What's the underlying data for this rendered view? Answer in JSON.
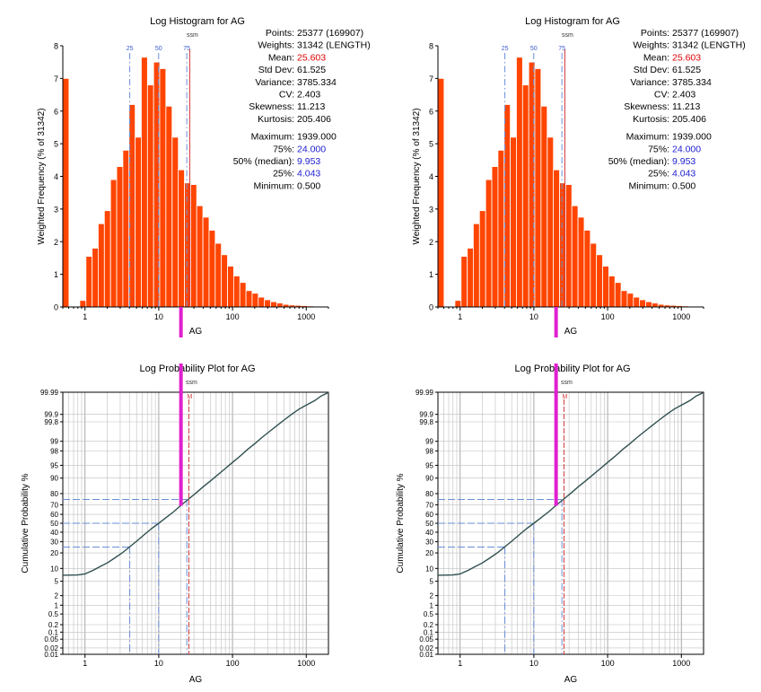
{
  "colors": {
    "bar_fill": "#FF4500",
    "bar_edge": "#FFFFFF",
    "axis": "#000000",
    "grid": "#BFBFBF",
    "curve": "#2F4F4F",
    "quantile_line": "#6A8FD8",
    "mean_line": "#D23C3C",
    "magenta": "#E020D0",
    "value_red": "#E00000",
    "value_blue": "#2020D0"
  },
  "stats": [
    {
      "label": "Points:",
      "value": "25377 (169907)",
      "color": "black",
      "gap": false
    },
    {
      "label": "Weights:",
      "value": "31342 (LENGTH)",
      "color": "black",
      "gap": false
    },
    {
      "label": "Mean:",
      "value": "25.603",
      "color": "red",
      "gap": false
    },
    {
      "label": "Std Dev:",
      "value": "61.525",
      "color": "black",
      "gap": false
    },
    {
      "label": "Variance:",
      "value": "3785.334",
      "color": "black",
      "gap": false
    },
    {
      "label": "CV:",
      "value": "2.403",
      "color": "black",
      "gap": false
    },
    {
      "label": "Skewness:",
      "value": "11.213",
      "color": "black",
      "gap": false
    },
    {
      "label": "Kurtosis:",
      "value": "205.406",
      "color": "black",
      "gap": false
    },
    {
      "label": "Maximum:",
      "value": "1939.000",
      "color": "black",
      "gap": true
    },
    {
      "label": "75%:",
      "value": "24.000",
      "color": "blue",
      "gap": false
    },
    {
      "label": "50% (median):",
      "value": "9.953",
      "color": "blue",
      "gap": false
    },
    {
      "label": "25%:",
      "value": "4.043",
      "color": "blue",
      "gap": false
    },
    {
      "label": "Minimum:",
      "value": "0.500",
      "color": "black",
      "gap": false
    }
  ],
  "chart_data": [
    {
      "id": "histogram-left",
      "type": "bar",
      "title": "Log Histogram for AG",
      "xlabel": "AG",
      "ylabel": "Weighted Frequency (% of 31342)",
      "x_scale": "log",
      "xlim": [
        0.5,
        2000
      ],
      "ylim": [
        0,
        8
      ],
      "x_ticks": [
        1,
        10,
        100,
        1000
      ],
      "y_ticks": [
        0,
        1,
        2,
        3,
        4,
        5,
        6,
        7,
        8
      ],
      "bin_log_width": 0.0833,
      "bin_left_edges": [
        0.5,
        0.7,
        0.85,
        1.03,
        1.25,
        1.51,
        1.83,
        2.22,
        2.69,
        3.26,
        3.95,
        4.79,
        5.8,
        7.03,
        8.52,
        10.3,
        12.5,
        15.2,
        18.4,
        22.3,
        27.0,
        32.7,
        39.7,
        48.1,
        58.3,
        70.6,
        85.6,
        103.7,
        125.7,
        152.3,
        184.6,
        223.7,
        271.1,
        328.5,
        398.1,
        482.4,
        584.6,
        708.5,
        858.5,
        1040.4,
        1260.7,
        1527.8
      ],
      "values": [
        7.0,
        0.0,
        0.2,
        1.55,
        1.8,
        2.55,
        2.95,
        3.9,
        4.3,
        4.8,
        6.2,
        5.2,
        7.65,
        6.8,
        7.5,
        7.3,
        6.15,
        5.2,
        4.2,
        3.8,
        3.75,
        3.1,
        2.75,
        2.35,
        1.95,
        1.6,
        1.25,
        0.95,
        0.75,
        0.5,
        0.42,
        0.3,
        0.22,
        0.16,
        0.12,
        0.08,
        0.06,
        0.05,
        0.04,
        0.03,
        0.02,
        0.01
      ],
      "vlines": [
        {
          "label": "25",
          "x": 4.043,
          "kind": "quantile"
        },
        {
          "label": "50",
          "x": 9.953,
          "kind": "quantile"
        },
        {
          "label": "75",
          "x": 24.0,
          "kind": "quantile"
        },
        {
          "label": "ssm",
          "x": 25.603,
          "kind": "mean"
        }
      ]
    },
    {
      "id": "histogram-right",
      "type": "bar",
      "title": "Log Histogram for AG",
      "xlabel": "AG",
      "ylabel": "Weighted Frequency (% of 31342)",
      "x_scale": "log",
      "xlim": [
        0.5,
        2000
      ],
      "ylim": [
        0,
        8
      ],
      "x_ticks": [
        1,
        10,
        100,
        1000
      ],
      "y_ticks": [
        0,
        1,
        2,
        3,
        4,
        5,
        6,
        7,
        8
      ],
      "bin_log_width": 0.0833,
      "bin_left_edges": [
        0.5,
        0.7,
        0.85,
        1.03,
        1.25,
        1.51,
        1.83,
        2.22,
        2.69,
        3.26,
        3.95,
        4.79,
        5.8,
        7.03,
        8.52,
        10.3,
        12.5,
        15.2,
        18.4,
        22.3,
        27.0,
        32.7,
        39.7,
        48.1,
        58.3,
        70.6,
        85.6,
        103.7,
        125.7,
        152.3,
        184.6,
        223.7,
        271.1,
        328.5,
        398.1,
        482.4,
        584.6,
        708.5,
        858.5,
        1040.4,
        1260.7,
        1527.8
      ],
      "values": [
        7.0,
        0.0,
        0.2,
        1.55,
        1.8,
        2.55,
        2.95,
        3.9,
        4.3,
        4.8,
        6.2,
        5.2,
        7.65,
        6.8,
        7.5,
        7.3,
        6.15,
        5.2,
        4.2,
        3.8,
        3.75,
        3.1,
        2.75,
        2.35,
        1.95,
        1.6,
        1.25,
        0.95,
        0.75,
        0.5,
        0.42,
        0.3,
        0.22,
        0.16,
        0.12,
        0.08,
        0.06,
        0.05,
        0.04,
        0.03,
        0.02,
        0.01
      ],
      "vlines": [
        {
          "label": "25",
          "x": 4.043,
          "kind": "quantile"
        },
        {
          "label": "50",
          "x": 9.953,
          "kind": "quantile"
        },
        {
          "label": "75",
          "x": 24.0,
          "kind": "quantile"
        },
        {
          "label": "ssm",
          "x": 25.603,
          "kind": "mean"
        }
      ]
    },
    {
      "id": "probability-left",
      "type": "line",
      "title": "Log Probability Plot for AG",
      "xlabel": "AG",
      "ylabel": "Cumulative Probability %",
      "x_scale": "log",
      "y_scale": "probability",
      "xlim": [
        0.5,
        2000
      ],
      "ylim": [
        0.01,
        99.99
      ],
      "x_ticks": [
        1,
        10,
        100,
        1000
      ],
      "y_ticks": [
        0.01,
        0.02,
        0.05,
        0.1,
        0.2,
        0.5,
        1,
        2,
        5,
        10,
        20,
        30,
        40,
        50,
        60,
        70,
        80,
        90,
        95,
        98,
        99,
        99.8,
        99.9,
        99.99
      ],
      "y_tick_labels": [
        "0.01",
        "0.02",
        "0.05",
        "0.1",
        "0.2",
        "0.5",
        "1",
        "2",
        "5",
        "10",
        "20",
        "30",
        "40",
        "50",
        "60",
        "70",
        "80",
        "90",
        "95",
        "98",
        "99",
        "99.8",
        "99.9",
        "99.99"
      ],
      "series": [
        {
          "name": "AG",
          "x": [
            0.5,
            0.8,
            1.0,
            1.3,
            1.6,
            2.0,
            2.5,
            3.2,
            4.0,
            5.0,
            6.3,
            8.0,
            10.0,
            12.6,
            16.0,
            20.0,
            25.0,
            32.0,
            40.0,
            50.0,
            63.0,
            80.0,
            100.0,
            130.0,
            160.0,
            200.0,
            250.0,
            320.0,
            400.0,
            500.0,
            630.0,
            800.0,
            1000.0,
            1300.0,
            1600.0,
            1939.0
          ],
          "y": [
            7.0,
            7.1,
            7.5,
            9.2,
            11.0,
            13.0,
            16.0,
            20.0,
            25.0,
            30.5,
            37.0,
            44.0,
            50.0,
            56.5,
            63.0,
            69.5,
            75.0,
            80.5,
            85.0,
            88.5,
            91.5,
            94.0,
            95.8,
            97.3,
            98.2,
            98.8,
            99.25,
            99.55,
            99.72,
            99.83,
            99.9,
            99.94,
            99.96,
            99.975,
            99.985,
            99.99
          ]
        }
      ],
      "guides": [
        {
          "label": "25",
          "x": 4.043,
          "p": 25,
          "kind": "quantile"
        },
        {
          "label": "50",
          "x": 9.953,
          "p": 50,
          "kind": "quantile"
        },
        {
          "label": "75",
          "x": 24.0,
          "p": 75,
          "kind": "quantile"
        },
        {
          "label": "M",
          "x": 25.603,
          "p": null,
          "kind": "mean"
        }
      ],
      "mean_tag": "ssm"
    },
    {
      "id": "probability-right",
      "type": "line",
      "title": "Log Probability Plot for AG",
      "xlabel": "AG",
      "ylabel": "Cumulative Probability %",
      "x_scale": "log",
      "y_scale": "probability",
      "xlim": [
        0.5,
        2000
      ],
      "ylim": [
        0.01,
        99.99
      ],
      "x_ticks": [
        1,
        10,
        100,
        1000
      ],
      "y_ticks": [
        0.01,
        0.02,
        0.05,
        0.1,
        0.2,
        0.5,
        1,
        2,
        5,
        10,
        20,
        30,
        40,
        50,
        60,
        70,
        80,
        90,
        95,
        98,
        99,
        99.8,
        99.9,
        99.99
      ],
      "y_tick_labels": [
        "0.01",
        "0.02",
        "0.05",
        "0.1",
        "0.2",
        "0.5",
        "1",
        "2",
        "5",
        "10",
        "20",
        "30",
        "40",
        "50",
        "60",
        "70",
        "80",
        "90",
        "95",
        "98",
        "99",
        "99.8",
        "99.9",
        "99.99"
      ],
      "series": [
        {
          "name": "AG",
          "x": [
            0.5,
            0.8,
            1.0,
            1.3,
            1.6,
            2.0,
            2.5,
            3.2,
            4.0,
            5.0,
            6.3,
            8.0,
            10.0,
            12.6,
            16.0,
            20.0,
            25.0,
            32.0,
            40.0,
            50.0,
            63.0,
            80.0,
            100.0,
            130.0,
            160.0,
            200.0,
            250.0,
            320.0,
            400.0,
            500.0,
            630.0,
            800.0,
            1000.0,
            1300.0,
            1600.0,
            1939.0
          ],
          "y": [
            7.0,
            7.1,
            7.5,
            9.2,
            11.0,
            13.0,
            16.0,
            20.0,
            25.0,
            30.5,
            37.0,
            44.0,
            50.0,
            56.5,
            63.0,
            69.5,
            75.0,
            80.5,
            85.0,
            88.5,
            91.5,
            94.0,
            95.8,
            97.3,
            98.2,
            98.8,
            99.25,
            99.55,
            99.72,
            99.83,
            99.9,
            99.94,
            99.96,
            99.975,
            99.985,
            99.99
          ]
        }
      ],
      "guides": [
        {
          "label": "25",
          "x": 4.043,
          "p": 25,
          "kind": "quantile"
        },
        {
          "label": "50",
          "x": 9.953,
          "p": 50,
          "kind": "quantile"
        },
        {
          "label": "75",
          "x": 24.0,
          "p": 75,
          "kind": "quantile"
        },
        {
          "label": "M",
          "x": 25.603,
          "p": null,
          "kind": "mean"
        }
      ],
      "mean_tag": "ssm"
    }
  ],
  "connectors": [
    {
      "from": "histogram-left",
      "to": "probability-left",
      "x_value": 20.0,
      "p": 69
    },
    {
      "from": "histogram-right",
      "to": "probability-right",
      "x_value": 20.0,
      "p": 69
    }
  ]
}
